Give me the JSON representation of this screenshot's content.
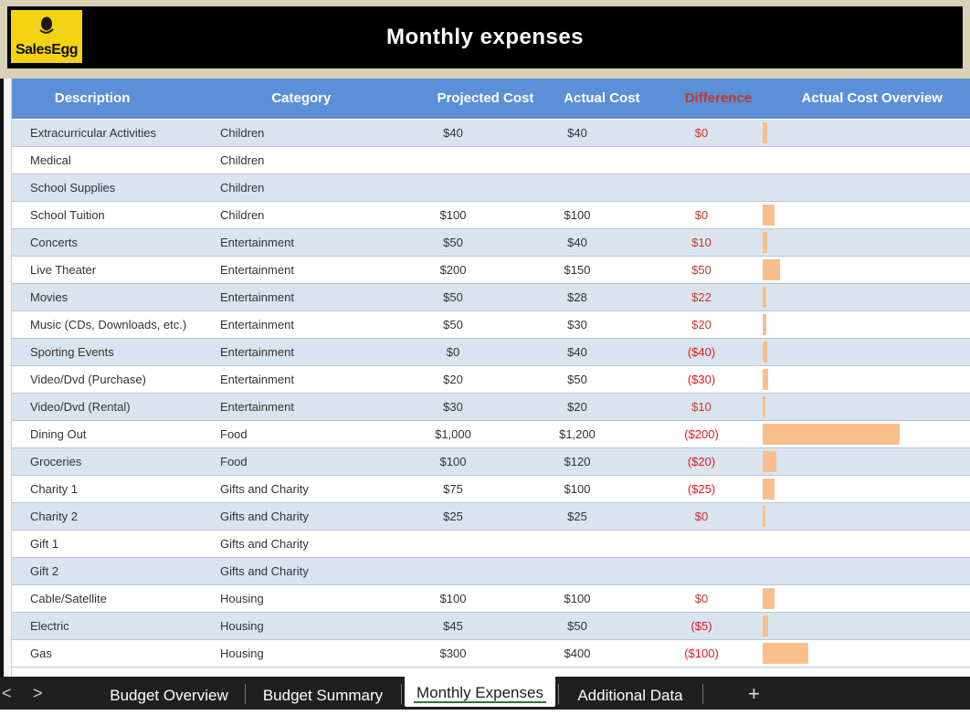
{
  "banner": {
    "title": "Monthly expenses",
    "logo_text": "SalesEgg"
  },
  "table": {
    "headers": [
      "Description",
      "Category",
      "Projected Cost",
      "Actual Cost",
      "Difference",
      "Actual Cost Overview"
    ],
    "rows": [
      {
        "description": "Extracurricular Activities",
        "category": "Children",
        "projected": "$40",
        "actual": "$40",
        "difference": "$0",
        "negative": false,
        "actual_value": 40
      },
      {
        "description": "Medical",
        "category": "Children",
        "projected": "",
        "actual": "",
        "difference": "",
        "negative": false,
        "actual_value": 0
      },
      {
        "description": "School Supplies",
        "category": "Children",
        "projected": "",
        "actual": "",
        "difference": "",
        "negative": false,
        "actual_value": 0
      },
      {
        "description": "School Tuition",
        "category": "Children",
        "projected": "$100",
        "actual": "$100",
        "difference": "$0",
        "negative": false,
        "actual_value": 100
      },
      {
        "description": "Concerts",
        "category": "Entertainment",
        "projected": "$50",
        "actual": "$40",
        "difference": "$10",
        "negative": false,
        "actual_value": 40
      },
      {
        "description": "Live Theater",
        "category": "Entertainment",
        "projected": "$200",
        "actual": "$150",
        "difference": "$50",
        "negative": false,
        "actual_value": 150
      },
      {
        "description": "Movies",
        "category": "Entertainment",
        "projected": "$50",
        "actual": "$28",
        "difference": "$22",
        "negative": false,
        "actual_value": 28
      },
      {
        "description": "Music (CDs, Downloads, etc.)",
        "category": "Entertainment",
        "projected": "$50",
        "actual": "$30",
        "difference": "$20",
        "negative": false,
        "actual_value": 30
      },
      {
        "description": "Sporting Events",
        "category": "Entertainment",
        "projected": "$0",
        "actual": "$40",
        "difference": "($40)",
        "negative": true,
        "actual_value": 40
      },
      {
        "description": "Video/Dvd (Purchase)",
        "category": "Entertainment",
        "projected": "$20",
        "actual": "$50",
        "difference": "($30)",
        "negative": true,
        "actual_value": 50
      },
      {
        "description": "Video/Dvd (Rental)",
        "category": "Entertainment",
        "projected": "$30",
        "actual": "$20",
        "difference": "$10",
        "negative": false,
        "actual_value": 20
      },
      {
        "description": "Dining Out",
        "category": "Food",
        "projected": "$1,000",
        "actual": "$1,200",
        "difference": "($200)",
        "negative": true,
        "actual_value": 1200
      },
      {
        "description": "Groceries",
        "category": "Food",
        "projected": "$100",
        "actual": "$120",
        "difference": "($20)",
        "negative": true,
        "actual_value": 120
      },
      {
        "description": "Charity 1",
        "category": "Gifts and Charity",
        "projected": "$75",
        "actual": "$100",
        "difference": "($25)",
        "negative": true,
        "actual_value": 100
      },
      {
        "description": "Charity 2",
        "category": "Gifts and Charity",
        "projected": "$25",
        "actual": "$25",
        "difference": "$0",
        "negative": false,
        "actual_value": 25
      },
      {
        "description": "Gift 1",
        "category": "Gifts and Charity",
        "projected": "",
        "actual": "",
        "difference": "",
        "negative": false,
        "actual_value": 0
      },
      {
        "description": "Gift 2",
        "category": "Gifts and Charity",
        "projected": "",
        "actual": "",
        "difference": "",
        "negative": false,
        "actual_value": 0
      },
      {
        "description": "Cable/Satellite",
        "category": "Housing",
        "projected": "$100",
        "actual": "$100",
        "difference": "$0",
        "negative": false,
        "actual_value": 100
      },
      {
        "description": "Electric",
        "category": "Housing",
        "projected": "$45",
        "actual": "$50",
        "difference": "($5)",
        "negative": true,
        "actual_value": 50
      },
      {
        "description": "Gas",
        "category": "Housing",
        "projected": "$300",
        "actual": "$400",
        "difference": "($100)",
        "negative": true,
        "actual_value": 400
      }
    ]
  },
  "data_bar_max": 1200,
  "colors": {
    "header_bg": "#5b8fd8",
    "band_row": "#dae4ef",
    "data_bar": "#f8bf8c",
    "negative_text": "#e0161b",
    "logo_bg": "#f3d312"
  },
  "sheet_tabs": [
    {
      "label": "Budget Overview",
      "active": false
    },
    {
      "label": "Budget Summary",
      "active": false
    },
    {
      "label": "Monthly Expenses",
      "active": true
    },
    {
      "label": "Additional Data",
      "active": false
    }
  ],
  "nav": {
    "prev": "<",
    "next": ">",
    "add": "+"
  }
}
